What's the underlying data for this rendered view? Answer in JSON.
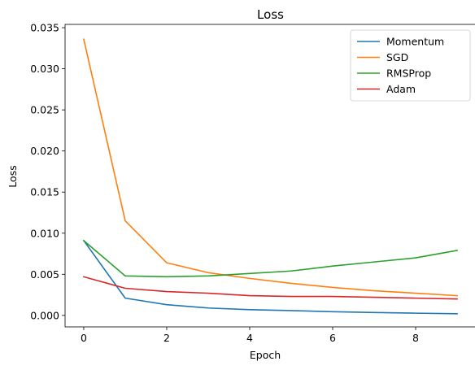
{
  "chart_data": {
    "type": "line",
    "title": "Loss",
    "xlabel": "Epoch",
    "ylabel": "Loss",
    "x": [
      0,
      1,
      2,
      3,
      4,
      5,
      6,
      7,
      8,
      9
    ],
    "xlim": [
      -0.45,
      9.45
    ],
    "ylim": [
      -0.0014,
      0.0354
    ],
    "xticks": [
      0,
      2,
      4,
      6,
      8
    ],
    "xtick_labels": [
      "0",
      "2",
      "4",
      "6",
      "8"
    ],
    "yticks": [
      0.0,
      0.005,
      0.01,
      0.015,
      0.02,
      0.025,
      0.03,
      0.035
    ],
    "ytick_labels": [
      "0.000",
      "0.005",
      "0.010",
      "0.015",
      "0.020",
      "0.025",
      "0.030",
      "0.035"
    ],
    "grid": false,
    "legend_position": "top-right",
    "series": [
      {
        "name": " Momentum",
        "color": "#1f77b4",
        "values": [
          0.0091,
          0.0021,
          0.0013,
          0.0009,
          0.0007,
          0.00058,
          0.00045,
          0.00035,
          0.00027,
          0.0002
        ]
      },
      {
        "name": " SGD",
        "color": "#ff7f0e",
        "values": [
          0.0336,
          0.0115,
          0.0064,
          0.0052,
          0.0045,
          0.0039,
          0.0034,
          0.003,
          0.0027,
          0.0024
        ]
      },
      {
        "name": " RMSProp",
        "color": "#2ca02c",
        "values": [
          0.0091,
          0.0048,
          0.0047,
          0.0048,
          0.0051,
          0.0054,
          0.006,
          0.0065,
          0.007,
          0.0079
        ]
      },
      {
        "name": " Adam",
        "color": "#d62728",
        "values": [
          0.0047,
          0.0033,
          0.0029,
          0.0027,
          0.0024,
          0.0023,
          0.0023,
          0.0022,
          0.0021,
          0.002
        ]
      }
    ]
  }
}
